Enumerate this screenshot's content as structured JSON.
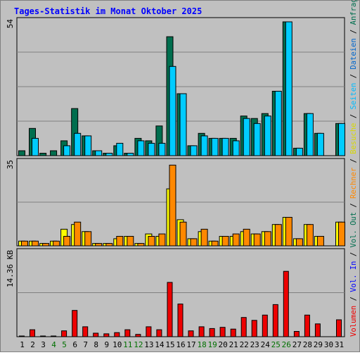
{
  "chart_data": {
    "type": "bar",
    "title": "Tages-Statistik im Monat Oktober 2025",
    "days": [
      "1",
      "2",
      "3",
      "4",
      "5",
      "6",
      "7",
      "8",
      "9",
      "10",
      "11",
      "12",
      "13",
      "14",
      "15",
      "16",
      "17",
      "18",
      "19",
      "20",
      "21",
      "22",
      "23",
      "24",
      "25",
      "26",
      "27",
      "28",
      "29",
      "30",
      "31"
    ],
    "weekend_days": [
      "4",
      "5",
      "11",
      "12",
      "18",
      "19",
      "25",
      "26"
    ],
    "colors": {
      "background": "#c0c0c0",
      "frame": "#808080",
      "title": "#0000ff",
      "anfragen": "#006e4e",
      "dateien": "#00ccff",
      "seiten": "#00ccff",
      "besuche": "#ffff00",
      "rechner": "#ff8800",
      "volumen": "#ee0000",
      "weekend_label": "#007000",
      "weekday_label": "#000000"
    },
    "panels": [
      {
        "name": "top",
        "max_label": "54",
        "ylim": [
          0,
          54
        ],
        "series": [
          {
            "name": "Anfragen",
            "values": [
              2,
              11,
              1,
              2,
              6,
              19,
              8,
              2,
              1,
              4,
              1,
              7,
              6,
              12,
              48,
              25,
              4,
              9,
              7,
              7,
              7,
              16,
              15,
              17,
              26,
              54,
              3,
              17,
              9,
              0,
              13
            ]
          },
          {
            "name": "Dateien",
            "values": [
              0,
              7,
              0,
              0,
              4,
              9,
              8,
              2,
              1,
              5,
              1,
              6,
              5,
              5,
              36,
              25,
              4,
              8,
              7,
              7,
              6,
              15,
              13,
              16,
              26,
              54,
              3,
              17,
              9,
              0,
              13
            ]
          }
        ]
      },
      {
        "name": "middle",
        "max_label": "35",
        "ylim": [
          0,
          35
        ],
        "series": [
          {
            "name": "Besuche",
            "values": [
              2,
              2,
              1,
              2,
              7,
              9,
              6,
              1,
              1,
              3,
              4,
              1,
              5,
              4,
              24,
              11,
              3,
              6,
              2,
              4,
              4,
              6,
              5,
              6,
              9,
              12,
              3,
              9,
              4,
              0,
              10
            ]
          },
          {
            "name": "Rechner",
            "values": [
              2,
              2,
              1,
              2,
              4,
              10,
              6,
              1,
              1,
              4,
              4,
              1,
              4,
              5,
              34,
              10,
              3,
              7,
              2,
              4,
              5,
              7,
              5,
              6,
              9,
              12,
              3,
              9,
              4,
              0,
              10
            ]
          }
        ]
      },
      {
        "name": "bottom",
        "max_label": "14.36 KB",
        "ylim": [
          0,
          14.36
        ],
        "series": [
          {
            "name": "Volumen",
            "values": [
              0.1,
              1.2,
              0.1,
              0.1,
              1.0,
              4.5,
              1.7,
              0.6,
              0.5,
              0.7,
              1.2,
              0.4,
              1.7,
              1.2,
              9.3,
              5.6,
              1.0,
              1.7,
              1.4,
              1.6,
              1.3,
              3.3,
              2.8,
              3.7,
              5.5,
              11.2,
              0.9,
              3.7,
              2.2,
              0,
              2.9
            ]
          }
        ]
      }
    ],
    "side_legend": [
      {
        "text": "Volumen",
        "color": "#ee0000"
      },
      {
        "text": "Vol. In",
        "color": "#0000ff"
      },
      {
        "text": "Vol. Out",
        "color": "#006e4e"
      },
      {
        "text": "Rechner",
        "color": "#ff8800"
      },
      {
        "text": "Besuche",
        "color": "#d8d800"
      },
      {
        "text": "Seiten",
        "color": "#00bbff"
      },
      {
        "text": "Dateien",
        "color": "#0066cc"
      },
      {
        "text": "Anfragen",
        "color": "#006e4e"
      }
    ],
    "legend_separator": "/"
  }
}
